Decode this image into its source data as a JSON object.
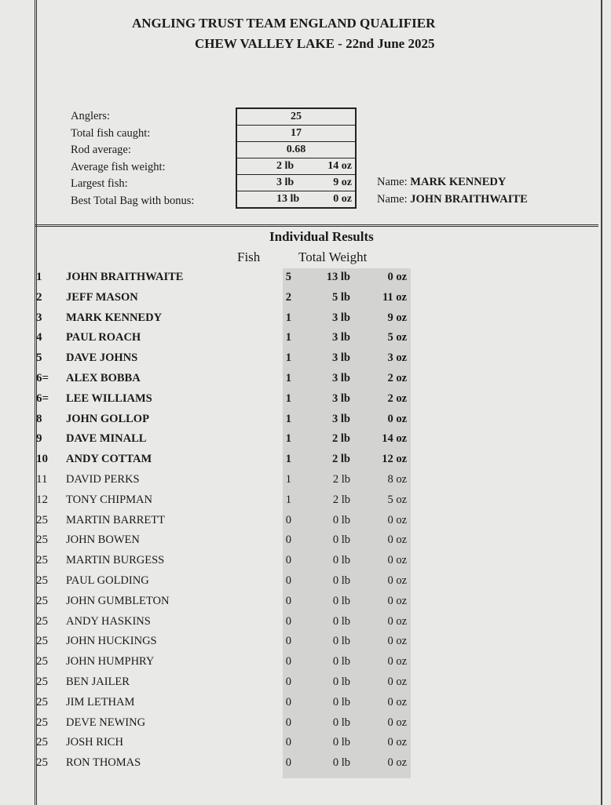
{
  "header": {
    "title": "ANGLING TRUST TEAM ENGLAND QUALIFIER",
    "subtitle": "CHEW VALLEY LAKE - 22nd June 2025"
  },
  "summary": {
    "anglers": {
      "label": "Anglers:",
      "value": "25"
    },
    "total_fish": {
      "label": "Total fish caught:",
      "value": "17"
    },
    "rod_average": {
      "label": "Rod average:",
      "value": "0.68"
    },
    "avg_weight": {
      "label": "Average fish weight:",
      "lb": "2 lb",
      "oz": "14 oz"
    },
    "largest": {
      "label": "Largest fish:",
      "lb": "3 lb",
      "oz": "9 oz",
      "name_label": "Name:",
      "name": "MARK KENNEDY"
    },
    "best_bag": {
      "label": "Best Total Bag with bonus:",
      "lb": "13 lb",
      "oz": "0 oz",
      "name_label": "Name:",
      "name": "JOHN BRAITHWAITE"
    }
  },
  "results": {
    "heading": "Individual Results",
    "col_fish": "Fish",
    "col_weight": "Total Weight",
    "rows": [
      {
        "pos": "1",
        "name": "JOHN BRAITHWAITE",
        "fish": "5",
        "lb": "13 lb",
        "oz": "0 oz"
      },
      {
        "pos": "2",
        "name": "JEFF MASON",
        "fish": "2",
        "lb": "5 lb",
        "oz": "11 oz"
      },
      {
        "pos": "3",
        "name": "MARK KENNEDY",
        "fish": "1",
        "lb": "3 lb",
        "oz": "9 oz"
      },
      {
        "pos": "4",
        "name": "PAUL ROACH",
        "fish": "1",
        "lb": "3 lb",
        "oz": "5 oz"
      },
      {
        "pos": "5",
        "name": "DAVE JOHNS",
        "fish": "1",
        "lb": "3 lb",
        "oz": "3 oz"
      },
      {
        "pos": "6=",
        "name": "ALEX BOBBA",
        "fish": "1",
        "lb": "3 lb",
        "oz": "2 oz"
      },
      {
        "pos": "6=",
        "name": "LEE WILLIAMS",
        "fish": "1",
        "lb": "3 lb",
        "oz": "2 oz"
      },
      {
        "pos": "8",
        "name": "JOHN GOLLOP",
        "fish": "1",
        "lb": "3 lb",
        "oz": "0 oz"
      },
      {
        "pos": "9",
        "name": "DAVE MINALL",
        "fish": "1",
        "lb": "2 lb",
        "oz": "14 oz"
      },
      {
        "pos": "10",
        "name": "ANDY COTTAM",
        "fish": "1",
        "lb": "2 lb",
        "oz": "12 oz"
      },
      {
        "pos": "11",
        "name": "DAVID PERKS",
        "fish": "1",
        "lb": "2 lb",
        "oz": "8 oz"
      },
      {
        "pos": "12",
        "name": "TONY CHIPMAN",
        "fish": "1",
        "lb": "2 lb",
        "oz": "5 oz"
      },
      {
        "pos": "25",
        "name": "MARTIN BARRETT",
        "fish": "0",
        "lb": "0 lb",
        "oz": "0 oz"
      },
      {
        "pos": "25",
        "name": "JOHN BOWEN",
        "fish": "0",
        "lb": "0 lb",
        "oz": "0 oz"
      },
      {
        "pos": "25",
        "name": "MARTIN BURGESS",
        "fish": "0",
        "lb": "0 lb",
        "oz": "0 oz"
      },
      {
        "pos": "25",
        "name": "PAUL GOLDING",
        "fish": "0",
        "lb": "0 lb",
        "oz": "0 oz"
      },
      {
        "pos": "25",
        "name": "JOHN GUMBLETON",
        "fish": "0",
        "lb": "0 lb",
        "oz": "0 oz"
      },
      {
        "pos": "25",
        "name": "ANDY HASKINS",
        "fish": "0",
        "lb": "0 lb",
        "oz": "0 oz"
      },
      {
        "pos": "25",
        "name": "JOHN HUCKINGS",
        "fish": "0",
        "lb": "0 lb",
        "oz": "0 oz"
      },
      {
        "pos": "25",
        "name": "JOHN HUMPHRY",
        "fish": "0",
        "lb": "0 lb",
        "oz": "0 oz"
      },
      {
        "pos": "25",
        "name": "BEN JAILER",
        "fish": "0",
        "lb": "0 lb",
        "oz": "0 oz"
      },
      {
        "pos": "25",
        "name": "JIM LETHAM",
        "fish": "0",
        "lb": "0 lb",
        "oz": "0 oz"
      },
      {
        "pos": "25",
        "name": "DEVE NEWING",
        "fish": "0",
        "lb": "0 lb",
        "oz": "0 oz"
      },
      {
        "pos": "25",
        "name": "JOSH RICH",
        "fish": "0",
        "lb": "0 lb",
        "oz": "0 oz"
      },
      {
        "pos": "25",
        "name": "RON THOMAS",
        "fish": "0",
        "lb": "0 lb",
        "oz": "0 oz"
      }
    ]
  }
}
